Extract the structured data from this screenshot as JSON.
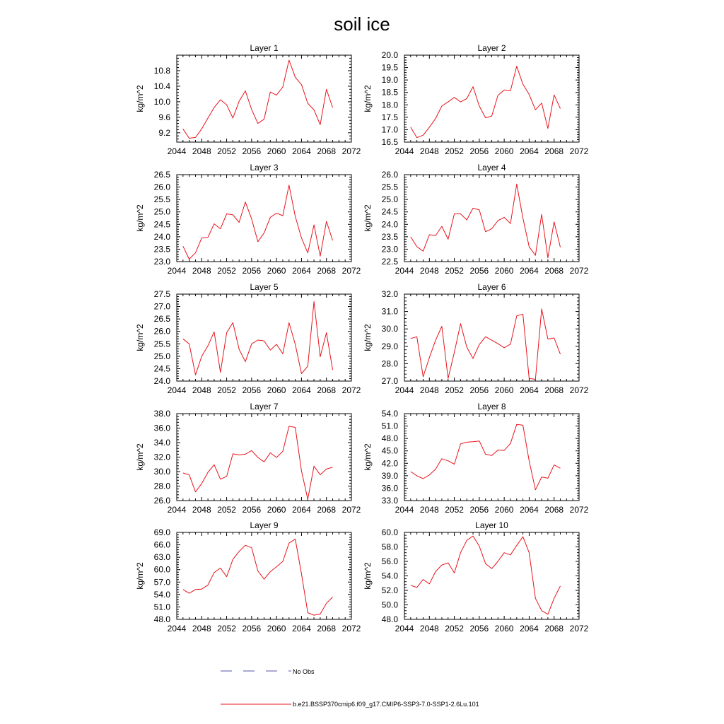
{
  "figure": {
    "title": "soil ice"
  },
  "legend": {
    "items": [
      {
        "label": "No Obs",
        "color": "#5555aa",
        "style": "dashed"
      },
      {
        "label": "b.e21.BSSP370cmip6.f09_g17.CMIP6-SSP3-7.0-SSP1-2.6Lu.101",
        "color": "#e8141c",
        "style": "solid"
      }
    ]
  },
  "chart_data": [
    {
      "type": "line",
      "title": "Layer 1",
      "ylabel": "kg/m^2",
      "xlim": [
        2044,
        2072
      ],
      "xticks": [
        "2044",
        "2048",
        "2052",
        "2056",
        "2060",
        "2064",
        "2068",
        "2072"
      ],
      "ylim": [
        8.96,
        11.2
      ],
      "yticks": [
        "9.2",
        "9.6",
        "10.0",
        "10.4",
        "10.8"
      ],
      "series": [
        {
          "color": "#e8141c",
          "x": [
            2045,
            2046,
            2047,
            2048,
            2049,
            2050,
            2051,
            2052,
            2053,
            2054,
            2055,
            2056,
            2057,
            2058,
            2059,
            2060,
            2061,
            2062,
            2063,
            2064,
            2065,
            2066,
            2067,
            2068,
            2069
          ],
          "y": [
            9.3,
            9.06,
            9.08,
            9.3,
            9.58,
            9.85,
            10.05,
            9.92,
            9.58,
            10.01,
            10.28,
            9.8,
            9.44,
            9.55,
            10.25,
            10.17,
            10.38,
            11.07,
            10.63,
            10.44,
            9.96,
            9.79,
            9.41,
            10.32,
            9.85
          ]
        }
      ]
    },
    {
      "type": "line",
      "title": "Layer 2",
      "ylabel": "kg/m^2",
      "xlim": [
        2044,
        2072
      ],
      "xticks": [
        "2044",
        "2048",
        "2052",
        "2056",
        "2060",
        "2064",
        "2068",
        "2072"
      ],
      "ylim": [
        16.5,
        20.0
      ],
      "yticks": [
        "16.5",
        "17.0",
        "17.5",
        "18.0",
        "18.5",
        "19.0",
        "19.5",
        "20.0"
      ],
      "series": [
        {
          "color": "#e8141c",
          "x": [
            2045,
            2046,
            2047,
            2048,
            2049,
            2050,
            2051,
            2052,
            2053,
            2054,
            2055,
            2056,
            2057,
            2058,
            2059,
            2060,
            2061,
            2062,
            2063,
            2064,
            2065,
            2066,
            2067,
            2068,
            2069
          ],
          "y": [
            17.1,
            16.68,
            16.78,
            17.1,
            17.45,
            17.95,
            18.12,
            18.3,
            18.12,
            18.25,
            18.73,
            17.95,
            17.48,
            17.55,
            18.38,
            18.6,
            18.57,
            19.55,
            18.83,
            18.42,
            17.8,
            18.07,
            17.05,
            18.4,
            17.85
          ]
        }
      ]
    },
    {
      "type": "line",
      "title": "Layer 3",
      "ylabel": "kg/m^2",
      "xlim": [
        2044,
        2072
      ],
      "xticks": [
        "2044",
        "2048",
        "2052",
        "2056",
        "2060",
        "2064",
        "2068",
        "2072"
      ],
      "ylim": [
        23.0,
        26.5
      ],
      "yticks": [
        "23.0",
        "23.5",
        "24.0",
        "24.5",
        "25.0",
        "25.5",
        "26.0",
        "26.5"
      ],
      "series": [
        {
          "color": "#e8141c",
          "x": [
            2045,
            2046,
            2047,
            2048,
            2049,
            2050,
            2051,
            2052,
            2053,
            2054,
            2055,
            2056,
            2057,
            2058,
            2059,
            2060,
            2061,
            2062,
            2063,
            2064,
            2065,
            2066,
            2067,
            2068,
            2069
          ],
          "y": [
            23.62,
            23.1,
            23.35,
            23.95,
            23.98,
            24.52,
            24.32,
            24.92,
            24.88,
            24.58,
            25.4,
            24.72,
            23.8,
            24.15,
            24.78,
            24.95,
            24.85,
            26.08,
            24.82,
            23.95,
            23.35,
            24.48,
            23.22,
            24.62,
            23.85
          ]
        }
      ]
    },
    {
      "type": "line",
      "title": "Layer 4",
      "ylabel": "kg/m^2",
      "xlim": [
        2044,
        2072
      ],
      "xticks": [
        "2044",
        "2048",
        "2052",
        "2056",
        "2060",
        "2064",
        "2068",
        "2072"
      ],
      "ylim": [
        22.5,
        26.0
      ],
      "yticks": [
        "22.5",
        "23.0",
        "23.5",
        "24.0",
        "24.5",
        "25.0",
        "25.5",
        "26.0"
      ],
      "series": [
        {
          "color": "#e8141c",
          "x": [
            2045,
            2046,
            2047,
            2048,
            2049,
            2050,
            2051,
            2052,
            2053,
            2054,
            2055,
            2056,
            2057,
            2058,
            2059,
            2060,
            2061,
            2062,
            2063,
            2064,
            2065,
            2066,
            2067,
            2068,
            2069
          ],
          "y": [
            23.5,
            23.1,
            22.92,
            23.58,
            23.55,
            23.92,
            23.4,
            24.42,
            24.42,
            24.18,
            24.65,
            24.58,
            23.7,
            23.82,
            24.15,
            24.28,
            24.03,
            25.62,
            24.25,
            23.1,
            22.75,
            24.4,
            22.65,
            24.1,
            23.08
          ]
        }
      ]
    },
    {
      "type": "line",
      "title": "Layer 5",
      "ylabel": "kg/m^2",
      "xlim": [
        2044,
        2072
      ],
      "xticks": [
        "2044",
        "2048",
        "2052",
        "2056",
        "2060",
        "2064",
        "2068",
        "2072"
      ],
      "ylim": [
        24.0,
        27.5
      ],
      "yticks": [
        "24.0",
        "24.5",
        "25.0",
        "25.5",
        "26.0",
        "26.5",
        "27.0",
        "27.5"
      ],
      "series": [
        {
          "color": "#e8141c",
          "x": [
            2045,
            2046,
            2047,
            2048,
            2049,
            2050,
            2051,
            2052,
            2053,
            2054,
            2055,
            2056,
            2057,
            2058,
            2059,
            2060,
            2061,
            2062,
            2063,
            2064,
            2065,
            2066,
            2067,
            2068,
            2069
          ],
          "y": [
            25.7,
            25.5,
            24.25,
            25.0,
            25.42,
            25.98,
            24.35,
            25.95,
            26.35,
            25.28,
            24.78,
            25.5,
            25.65,
            25.62,
            25.25,
            25.48,
            25.1,
            26.35,
            25.48,
            24.3,
            24.6,
            27.2,
            24.98,
            25.95,
            24.45
          ]
        }
      ]
    },
    {
      "type": "line",
      "title": "Layer 6",
      "ylabel": "kg/m^2",
      "xlim": [
        2044,
        2072
      ],
      "xticks": [
        "2044",
        "2048",
        "2052",
        "2056",
        "2060",
        "2064",
        "2068",
        "2072"
      ],
      "ylim": [
        27.0,
        32.0
      ],
      "yticks": [
        "27.0",
        "28.0",
        "29.0",
        "30.0",
        "31.0",
        "32.0"
      ],
      "series": [
        {
          "color": "#e8141c",
          "x": [
            2045,
            2046,
            2047,
            2048,
            2049,
            2050,
            2051,
            2052,
            2053,
            2054,
            2055,
            2056,
            2057,
            2058,
            2059,
            2060,
            2061,
            2062,
            2063,
            2064,
            2065,
            2066,
            2067,
            2068,
            2069
          ],
          "y": [
            29.45,
            29.55,
            27.25,
            28.35,
            29.35,
            30.15,
            27.15,
            28.65,
            30.3,
            28.95,
            28.3,
            29.1,
            29.55,
            29.35,
            29.15,
            28.92,
            29.12,
            30.75,
            30.85,
            27.15,
            27.1,
            31.15,
            29.42,
            29.48,
            28.55
          ]
        }
      ]
    },
    {
      "type": "line",
      "title": "Layer 7",
      "ylabel": "kg/m^2",
      "xlim": [
        2044,
        2072
      ],
      "xticks": [
        "2044",
        "2048",
        "2052",
        "2056",
        "2060",
        "2064",
        "2068",
        "2072"
      ],
      "ylim": [
        26.0,
        38.0
      ],
      "yticks": [
        "26.0",
        "28.0",
        "30.0",
        "32.0",
        "34.0",
        "36.0",
        "38.0"
      ],
      "series": [
        {
          "color": "#e8141c",
          "x": [
            2045,
            2046,
            2047,
            2048,
            2049,
            2050,
            2051,
            2052,
            2053,
            2054,
            2055,
            2056,
            2057,
            2058,
            2059,
            2060,
            2061,
            2062,
            2063,
            2064,
            2065,
            2066,
            2067,
            2068,
            2069
          ],
          "y": [
            29.8,
            29.55,
            27.2,
            28.35,
            29.9,
            30.95,
            28.95,
            29.35,
            32.45,
            32.3,
            32.4,
            32.9,
            31.95,
            31.35,
            32.6,
            31.95,
            32.8,
            36.25,
            36.1,
            30.1,
            26.2,
            30.75,
            29.55,
            30.35,
            30.6
          ]
        }
      ]
    },
    {
      "type": "line",
      "title": "Layer 8",
      "ylabel": "kg/m^2",
      "xlim": [
        2044,
        2072
      ],
      "xticks": [
        "2044",
        "2048",
        "2052",
        "2056",
        "2060",
        "2064",
        "2068",
        "2072"
      ],
      "ylim": [
        33.0,
        54.0
      ],
      "yticks": [
        "33.0",
        "36.0",
        "39.0",
        "42.0",
        "45.0",
        "48.0",
        "51.0",
        "54.0"
      ],
      "series": [
        {
          "color": "#e8141c",
          "x": [
            2045,
            2046,
            2047,
            2048,
            2049,
            2050,
            2051,
            2052,
            2053,
            2054,
            2055,
            2056,
            2057,
            2058,
            2059,
            2060,
            2061,
            2062,
            2063,
            2064,
            2065,
            2066,
            2067,
            2068,
            2069
          ],
          "y": [
            40.0,
            39.0,
            38.3,
            39.2,
            40.6,
            43.1,
            42.6,
            41.8,
            46.7,
            47.1,
            47.2,
            47.4,
            44.2,
            43.9,
            45.2,
            45.1,
            46.8,
            51.4,
            51.2,
            42.6,
            35.6,
            38.7,
            38.4,
            41.6,
            40.8
          ]
        }
      ]
    },
    {
      "type": "line",
      "title": "Layer 9",
      "ylabel": "kg/m^2",
      "xlim": [
        2044,
        2072
      ],
      "xticks": [
        "2044",
        "2048",
        "2052",
        "2056",
        "2060",
        "2064",
        "2068",
        "2072"
      ],
      "ylim": [
        48.0,
        69.0
      ],
      "yticks": [
        "48.0",
        "51.0",
        "54.0",
        "57.0",
        "60.0",
        "63.0",
        "66.0",
        "69.0"
      ],
      "series": [
        {
          "color": "#e8141c",
          "x": [
            2045,
            2046,
            2047,
            2048,
            2049,
            2050,
            2051,
            2052,
            2053,
            2054,
            2055,
            2056,
            2057,
            2058,
            2059,
            2060,
            2061,
            2062,
            2063,
            2064,
            2065,
            2066,
            2067,
            2068,
            2069
          ],
          "y": [
            55.2,
            54.3,
            55.2,
            55.3,
            56.3,
            59.3,
            60.4,
            58.3,
            62.5,
            64.4,
            65.9,
            65.3,
            59.7,
            57.7,
            59.5,
            60.7,
            62.0,
            66.4,
            67.4,
            59.0,
            49.6,
            49.0,
            49.3,
            51.9,
            53.4
          ]
        }
      ]
    },
    {
      "type": "line",
      "title": "Layer 10",
      "ylabel": "kg/m^2",
      "xlim": [
        2044,
        2072
      ],
      "xticks": [
        "2044",
        "2048",
        "2052",
        "2056",
        "2060",
        "2064",
        "2068",
        "2072"
      ],
      "ylim": [
        48.0,
        60.0
      ],
      "yticks": [
        "48.0",
        "50.0",
        "52.0",
        "54.0",
        "56.0",
        "58.0",
        "60.0"
      ],
      "series": [
        {
          "color": "#e8141c",
          "x": [
            2045,
            2046,
            2047,
            2048,
            2049,
            2050,
            2051,
            2052,
            2053,
            2054,
            2055,
            2056,
            2057,
            2058,
            2059,
            2060,
            2061,
            2062,
            2063,
            2064,
            2065,
            2066,
            2067,
            2068,
            2069
          ],
          "y": [
            52.7,
            52.4,
            53.5,
            52.9,
            54.6,
            55.5,
            55.8,
            54.4,
            57.2,
            58.9,
            59.5,
            58.1,
            55.7,
            55.0,
            56.0,
            57.2,
            56.9,
            58.2,
            59.4,
            57.2,
            50.9,
            49.2,
            48.7,
            50.9,
            52.6
          ]
        }
      ]
    }
  ]
}
